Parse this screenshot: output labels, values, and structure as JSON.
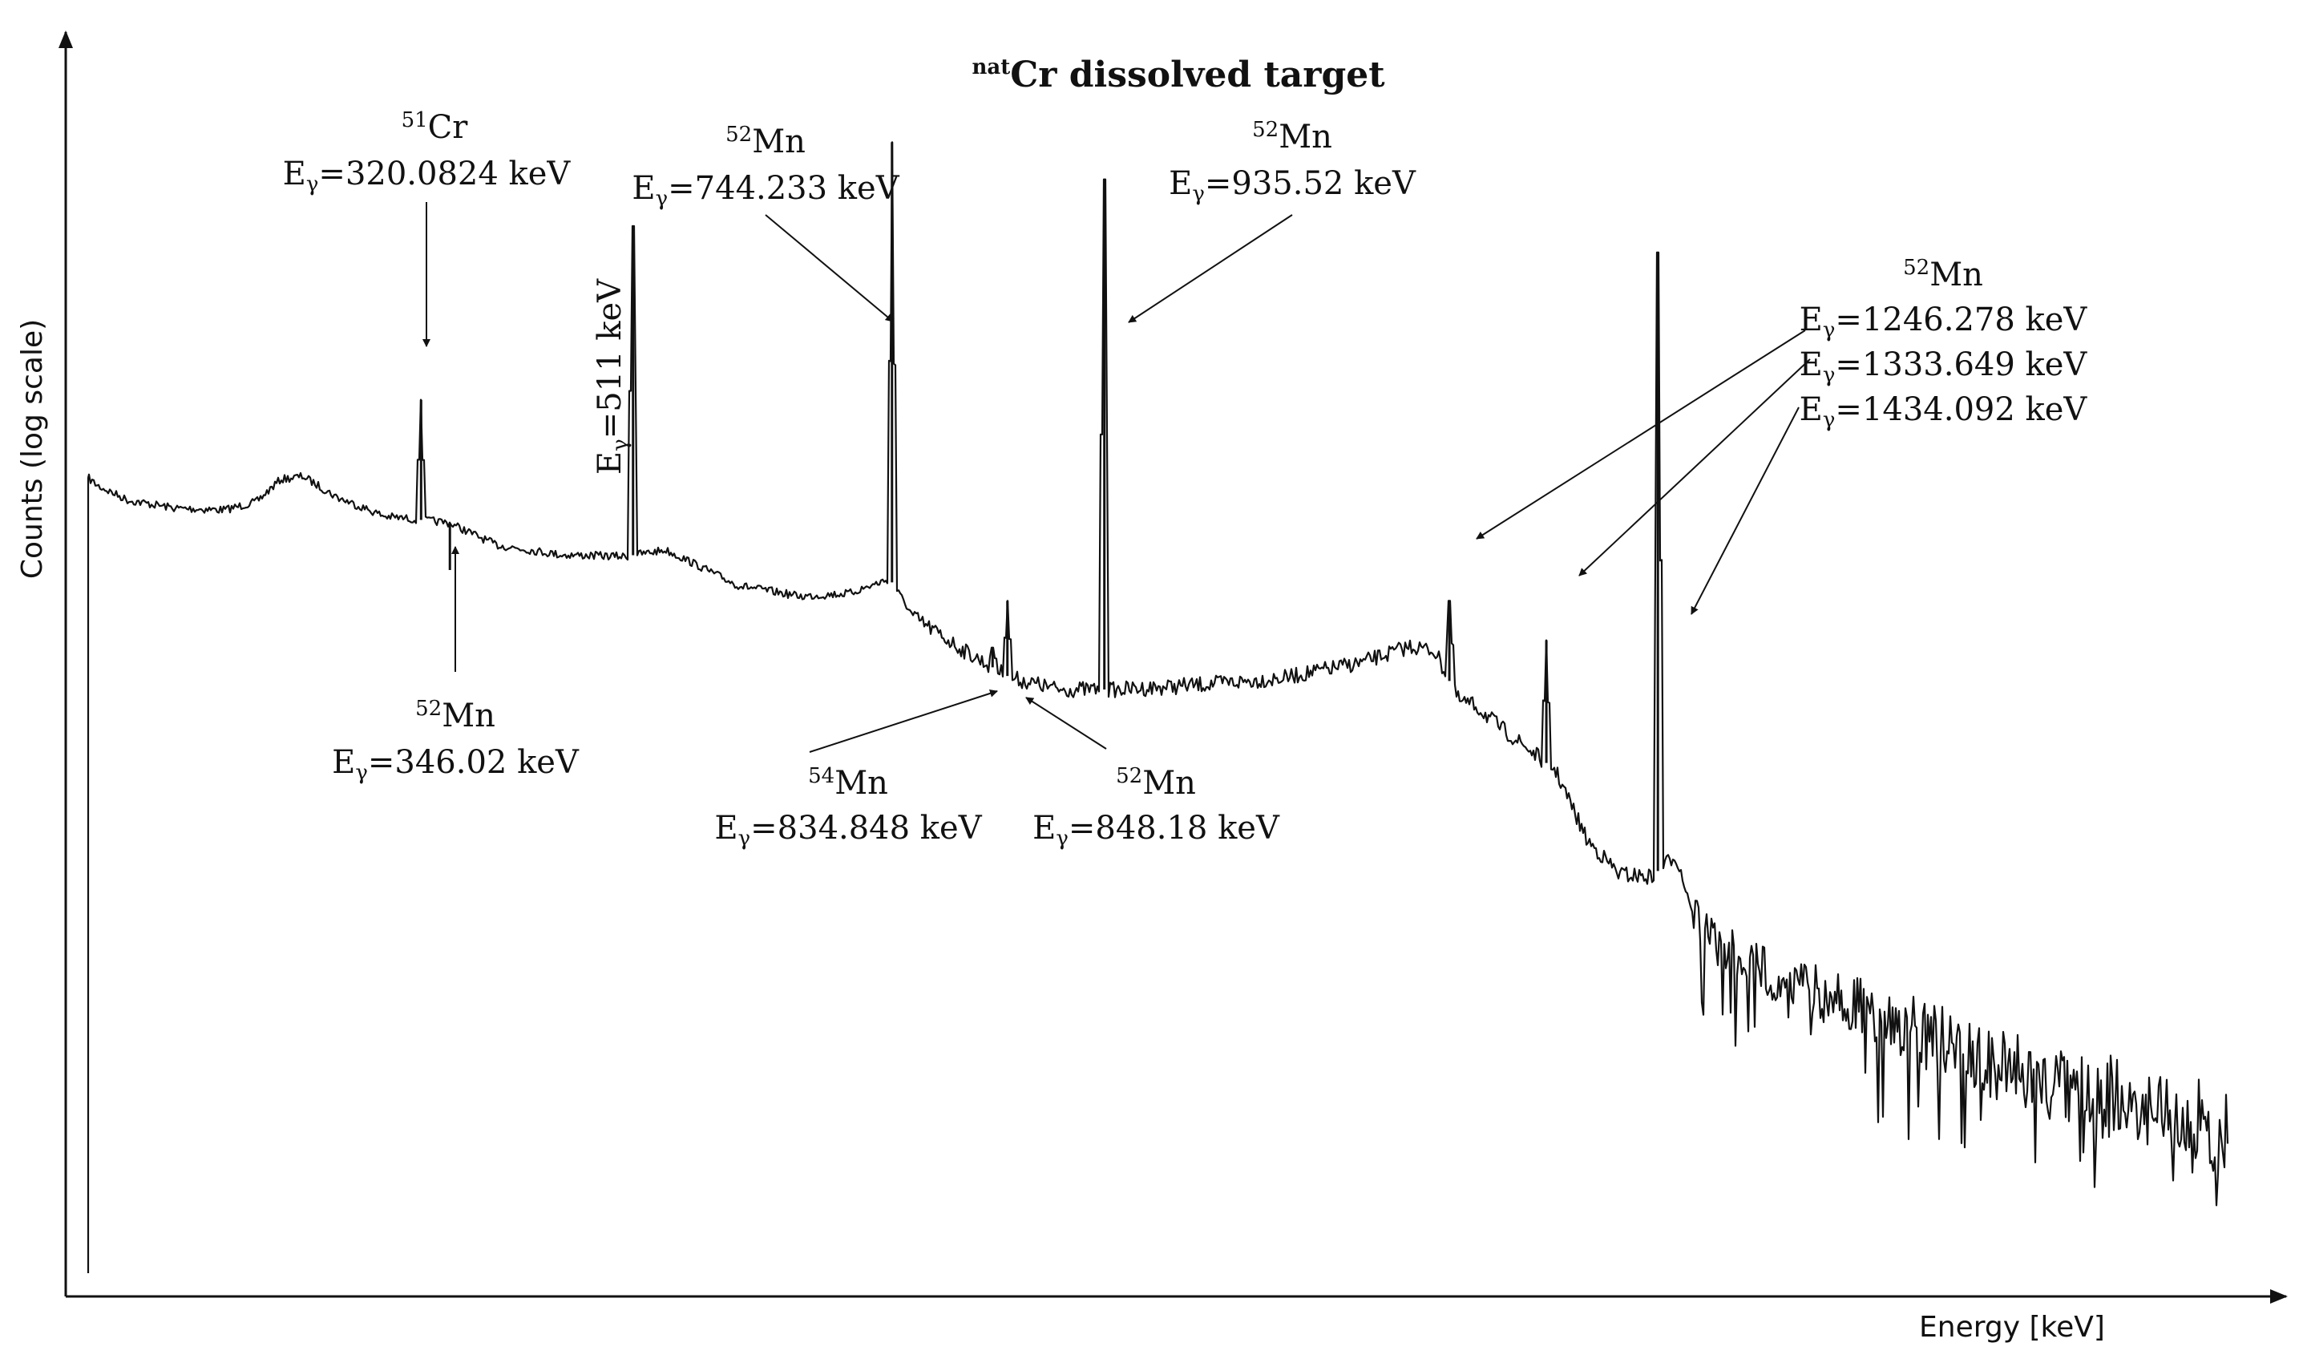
{
  "chart_data": {
    "type": "line",
    "title_sup": "nat",
    "title_main": "Cr dissolved target",
    "xlabel": "Energy [keV]",
    "ylabel": "Counts (log scale)",
    "y_scale": "log",
    "xlim": [
      0,
      2000
    ],
    "ylim": [
      1,
      1000000
    ],
    "grid": false,
    "legend": "none",
    "peaks": [
      {
        "energy": 320.0824,
        "counts": 18000
      },
      {
        "energy": 346.02,
        "counts": 2800
      },
      {
        "energy": 511,
        "counts": 120000
      },
      {
        "energy": 744.233,
        "counts": 300000
      },
      {
        "energy": 834.848,
        "counts": 1200
      },
      {
        "energy": 848.18,
        "counts": 2000
      },
      {
        "energy": 935.52,
        "counts": 200000
      },
      {
        "energy": 1246.278,
        "counts": 2000
      },
      {
        "energy": 1333.649,
        "counts": 1300
      },
      {
        "energy": 1434.092,
        "counts": 90000
      }
    ],
    "annotations": [
      {
        "id": "cr51-320",
        "isotope_sup": "51",
        "isotope": "Cr",
        "energy_label": "=320.0824 keV",
        "energy": 320.0824
      },
      {
        "id": "mn52-346",
        "isotope_sup": "52",
        "isotope": "Mn",
        "energy_label": "=346.02 keV",
        "energy": 346.02
      },
      {
        "id": "e511",
        "isotope_sup": "",
        "isotope": "",
        "energy_label": "=511 keV",
        "energy": 511
      },
      {
        "id": "mn52-744",
        "isotope_sup": "52",
        "isotope": "Mn",
        "energy_label": "=744.233 keV",
        "energy": 744.233
      },
      {
        "id": "mn54-834",
        "isotope_sup": "54",
        "isotope": "Mn",
        "energy_label": "=834.848 keV",
        "energy": 834.848
      },
      {
        "id": "mn52-848",
        "isotope_sup": "52",
        "isotope": "Mn",
        "energy_label": "=848.18 keV",
        "energy": 848.18
      },
      {
        "id": "mn52-935",
        "isotope_sup": "52",
        "isotope": "Mn",
        "energy_label": "=935.52 keV",
        "energy": 935.52
      },
      {
        "id": "mn52-group",
        "isotope_sup": "52",
        "isotope": "Mn",
        "energy_label": "",
        "energy": null
      },
      {
        "id": "mn52-1246",
        "isotope_sup": "",
        "isotope": "",
        "energy_label": "=1246.278 keV",
        "energy": 1246.278
      },
      {
        "id": "mn52-1333",
        "isotope_sup": "",
        "isotope": "",
        "energy_label": "=1333.649 keV",
        "energy": 1333.649
      },
      {
        "id": "mn52-1434",
        "isotope_sup": "",
        "isotope": "",
        "energy_label": "=1434.092 keV",
        "energy": 1434.092
      }
    ]
  }
}
